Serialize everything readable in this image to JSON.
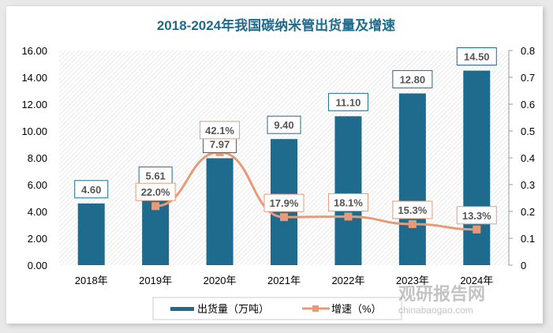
{
  "chart_data": {
    "type": "bar+line",
    "title": "2018-2024年我国碳纳米管出货量及增速",
    "categories": [
      "2018年",
      "2019年",
      "2020年",
      "2021年",
      "2022年",
      "2023年",
      "2024年"
    ],
    "series": [
      {
        "name": "出货量（万吨）",
        "type": "bar",
        "axis": "left",
        "values": [
          4.6,
          5.61,
          7.97,
          9.4,
          11.1,
          12.8,
          14.5
        ],
        "labels": [
          "4.60",
          "5.61",
          "7.97",
          "9.40",
          "11.10",
          "12.80",
          "14.50"
        ]
      },
      {
        "name": "增速（%）",
        "type": "line",
        "axis": "right",
        "values": [
          null,
          0.22,
          0.421,
          0.179,
          0.181,
          0.153,
          0.133
        ],
        "labels": [
          "",
          "22.0%",
          "42.1%",
          "17.9%",
          "18.1%",
          "15.3%",
          "13.3%"
        ]
      }
    ],
    "ylim_left": [
      0,
      16
    ],
    "yticks_left": [
      "0.00",
      "2.00",
      "4.00",
      "6.00",
      "8.00",
      "10.00",
      "12.00",
      "14.00",
      "16.00"
    ],
    "ylim_right": [
      0,
      0.8
    ],
    "yticks_right": [
      "0",
      "0.1",
      "0.2",
      "0.3",
      "0.4",
      "0.5",
      "0.6",
      "0.7",
      "0.8"
    ],
    "legend": "bottom",
    "colors": {
      "bar": "#1f6b8e",
      "line": "#e89a78",
      "title": "#1f6b8e"
    }
  },
  "watermark": {
    "cn": "观研报告网",
    "en": "chinabaogao.com"
  }
}
